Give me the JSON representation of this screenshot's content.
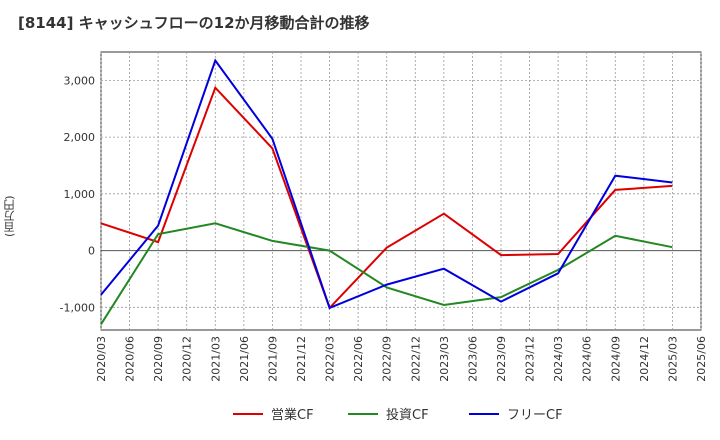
{
  "chart_data": {
    "type": "line",
    "title": "[8144]  キャッシュフローの12か月移動合計の推移",
    "ylabel": "(百万円)",
    "xlabel": "",
    "ylim": [
      -1400,
      3500
    ],
    "yticks": [
      -1000,
      0,
      1000,
      2000,
      3000
    ],
    "ytick_labels": [
      "-1,000",
      "0",
      "1,000",
      "2,000",
      "3,000"
    ],
    "x_ticks": [
      "2020/03",
      "2020/06",
      "2020/09",
      "2020/12",
      "2021/03",
      "2021/06",
      "2021/09",
      "2021/12",
      "2022/03",
      "2022/06",
      "2022/09",
      "2022/12",
      "2023/03",
      "2023/06",
      "2023/09",
      "2023/12",
      "2024/03",
      "2024/06",
      "2024/09",
      "2024/12",
      "2025/03",
      "2025/06"
    ],
    "x": [
      "2020/03",
      "2020/09",
      "2021/03",
      "2021/09",
      "2022/03",
      "2022/09",
      "2023/03",
      "2023/09",
      "2024/03",
      "2024/09",
      "2025/03"
    ],
    "series": [
      {
        "name": "営業CF",
        "color": "#dd0000",
        "values": [
          480,
          150,
          2870,
          1800,
          -1010,
          50,
          650,
          -80,
          -60,
          1070,
          1140
        ]
      },
      {
        "name": "投資CF",
        "color": "#228822",
        "values": [
          -1300,
          290,
          480,
          170,
          0,
          -650,
          -960,
          -820,
          -340,
          260,
          60
        ]
      },
      {
        "name": "フリーCF",
        "color": "#0000dd",
        "values": [
          -780,
          440,
          3350,
          1970,
          -1010,
          -600,
          -320,
          -900,
          -400,
          1320,
          1200
        ]
      }
    ],
    "grid": true,
    "legend_position": "bottom-center"
  }
}
